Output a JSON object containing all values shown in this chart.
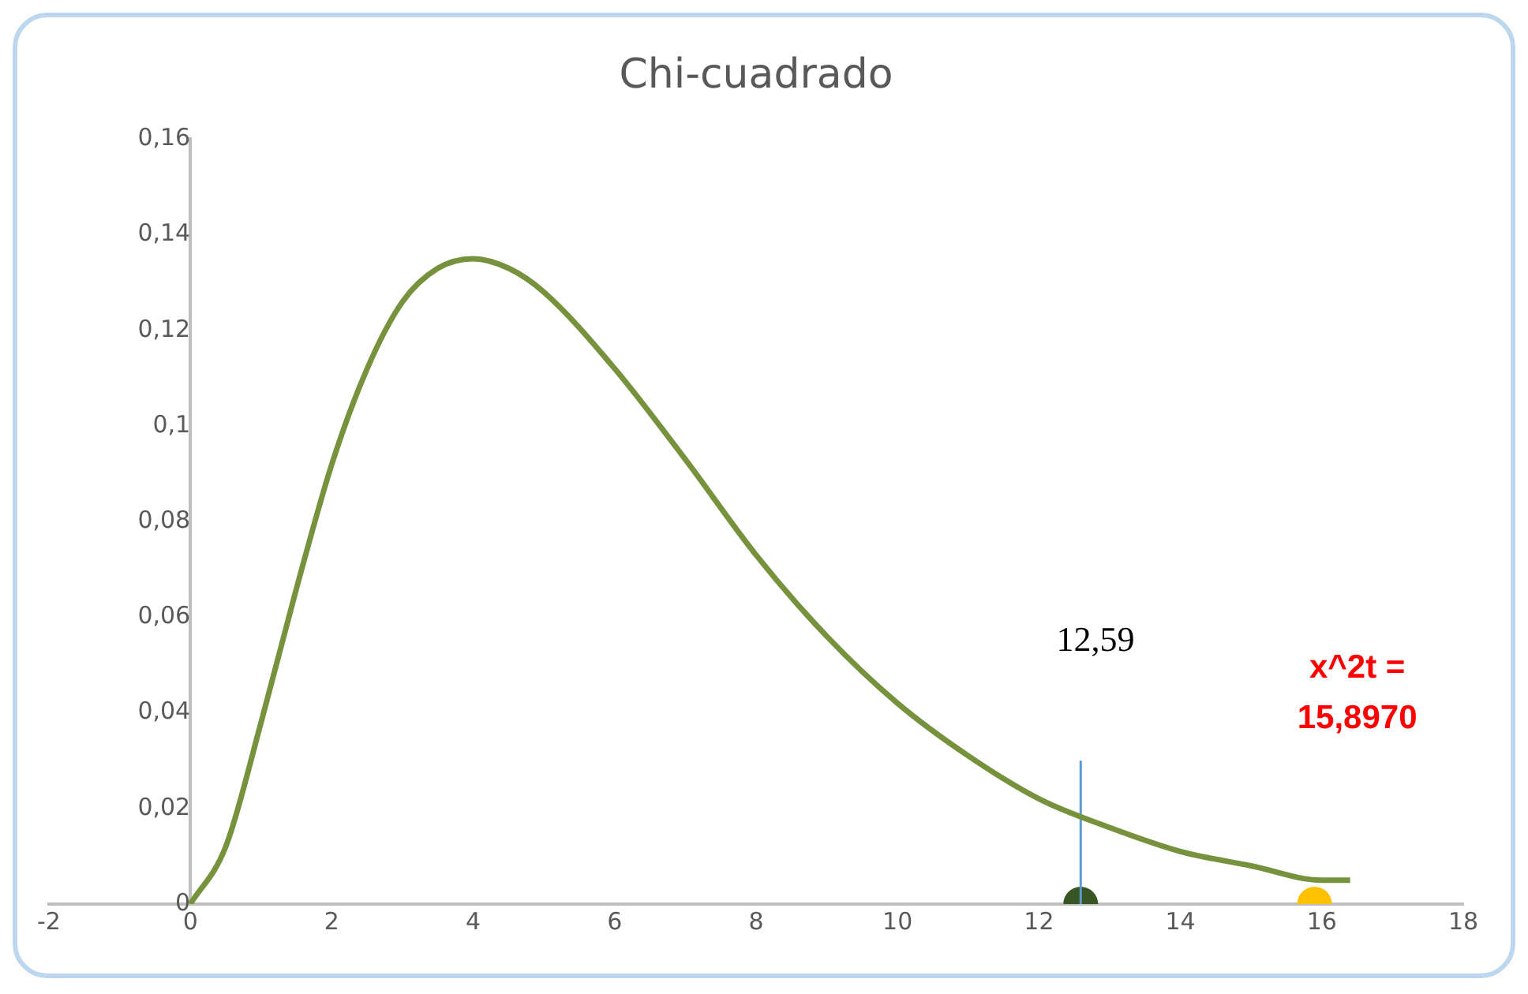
{
  "chart_data": {
    "type": "line",
    "title": "Chi-cuadrado",
    "series": [
      {
        "color": "#76923c",
        "x": [
          0,
          0.5,
          1,
          1.5,
          2,
          2.5,
          3,
          3.5,
          4,
          4.5,
          5,
          6,
          7,
          8,
          9,
          10,
          11,
          12,
          13,
          14,
          15,
          16,
          16.4
        ],
        "values": [
          0,
          0.012,
          0.038,
          0.066,
          0.092,
          0.112,
          0.126,
          0.133,
          0.135,
          0.133,
          0.128,
          0.112,
          0.093,
          0.073,
          0.056,
          0.042,
          0.031,
          0.022,
          0.016,
          0.011,
          0.008,
          0.005,
          0.005
        ]
      },
      {
        "type": "line",
        "color": "#5b9bd5",
        "x": [
          12.59,
          12.59
        ],
        "values": [
          0,
          0.03
        ]
      },
      {
        "type": "scatter",
        "color": "#375623",
        "x": [
          12.59
        ],
        "values": [
          0
        ]
      },
      {
        "type": "scatter",
        "color": "#ffc000",
        "x": [
          15.897
        ],
        "values": [
          0
        ]
      }
    ],
    "annotations": [
      "12,59",
      "x^2t = 15,8970"
    ],
    "xlim": [
      -2,
      18
    ],
    "xticks": [
      -2,
      0,
      2,
      4,
      6,
      8,
      10,
      12,
      14,
      16,
      18
    ],
    "ylim": [
      0,
      0.16
    ],
    "yticks": [
      0,
      {
        "value": 0.02,
        "label": "0,02"
      },
      {
        "value": 0.04,
        "label": "0,04"
      },
      {
        "value": 0.06,
        "label": "0,06"
      },
      {
        "value": 0.08,
        "label": "0,08"
      },
      {
        "value": 0.1,
        "label": "0,1"
      },
      {
        "value": 0.12,
        "label": "0,12"
      },
      {
        "value": 0.14,
        "label": "0,14"
      },
      {
        "value": 0.16,
        "label": "0,16"
      }
    ],
    "grid": false,
    "legend": false
  }
}
